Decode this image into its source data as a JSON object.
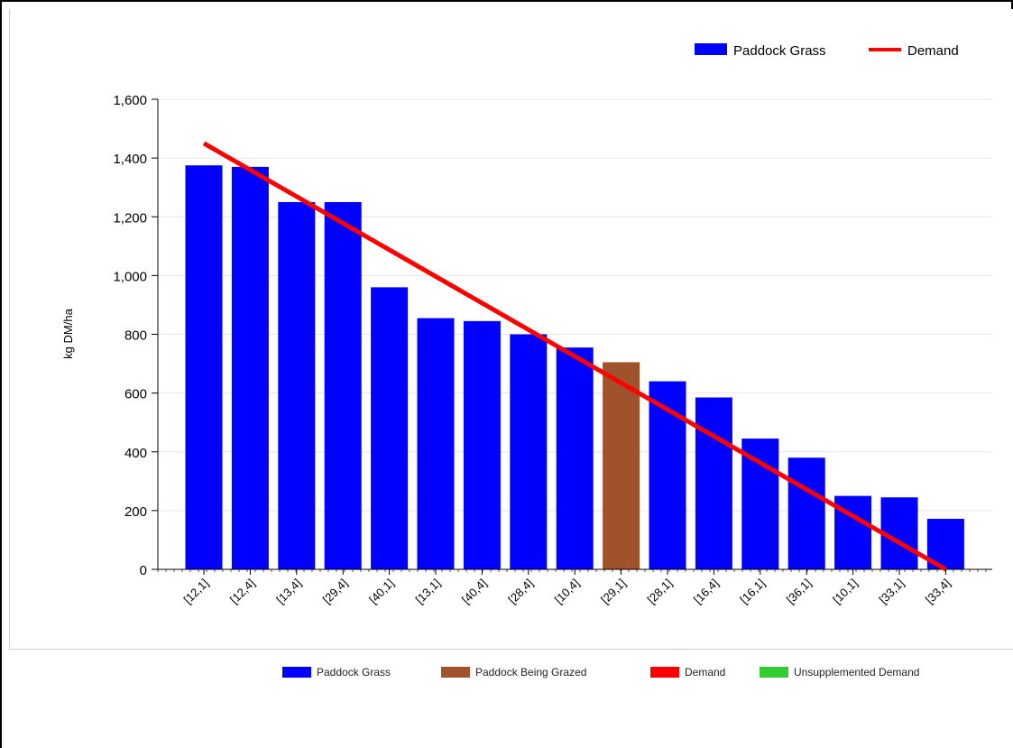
{
  "chart_data": {
    "type": "bar",
    "title": "",
    "xlabel": "",
    "ylabel": "kg DM/ha",
    "ylim": [
      0,
      1600
    ],
    "yticks": [
      0,
      200,
      400,
      600,
      800,
      1000,
      1200,
      1400,
      1600
    ],
    "ytick_labels": [
      "0",
      "200",
      "400",
      "600",
      "800",
      "1,000",
      "1,200",
      "1,400",
      "1,600"
    ],
    "grid": true,
    "legend_position": "top-right",
    "categories": [
      "[12,1]",
      "[12,4]",
      "[13,4]",
      "[29,4]",
      "[40,1]",
      "[13,1]",
      "[40,4]",
      "[28,4]",
      "[10,4]",
      "[29,1]",
      "[28,1]",
      "[16,4]",
      "[16,1]",
      "[36,1]",
      "[10,1]",
      "[33,1]",
      "[33,4]"
    ],
    "series": [
      {
        "name": "Paddock Grass",
        "type": "bar",
        "color": "#0000ff",
        "values": [
          1375,
          1370,
          1250,
          1250,
          960,
          855,
          845,
          800,
          755,
          null,
          640,
          585,
          445,
          380,
          250,
          245,
          172
        ]
      },
      {
        "name": "Paddock Being Grazed",
        "type": "bar",
        "color": "#a0522d",
        "values": [
          null,
          null,
          null,
          null,
          null,
          null,
          null,
          null,
          null,
          705,
          null,
          null,
          null,
          null,
          null,
          null,
          null
        ]
      },
      {
        "name": "Demand",
        "type": "line",
        "color": "#ff0000",
        "x_start": "[12,1]",
        "x_end": "[33,4]",
        "y_start": 1450,
        "y_end": 0
      }
    ],
    "top_legend": [
      {
        "label": "Paddock Grass",
        "color": "#0000ff",
        "kind": "box"
      },
      {
        "label": "Demand",
        "color": "#ff0000",
        "kind": "line"
      }
    ],
    "bottom_legend": [
      {
        "label": "Paddock Grass",
        "color": "#0000ff"
      },
      {
        "label": "Paddock Being Grazed",
        "color": "#a0522d"
      },
      {
        "label": "Demand",
        "color": "#ff0000"
      },
      {
        "label": "Unsupplemented Demand",
        "color": "#33cc33"
      }
    ]
  }
}
